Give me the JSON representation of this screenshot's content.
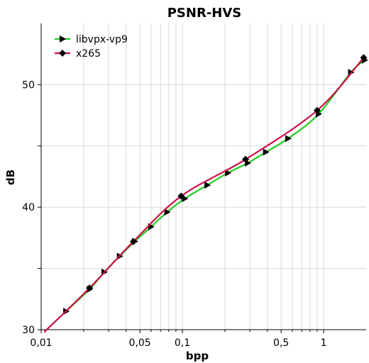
{
  "chart_data": {
    "type": "line",
    "title": "PSNR-HVS",
    "xlabel": "bpp",
    "ylabel": "dB",
    "x_scale": "log",
    "xlim": [
      0.01,
      2.0
    ],
    "ylim": [
      30,
      55
    ],
    "x_ticks": [
      {
        "value": 0.01,
        "label": "0,01"
      },
      {
        "value": 0.05,
        "label": "0,05"
      },
      {
        "value": 0.1,
        "label": "0,1"
      },
      {
        "value": 0.5,
        "label": "0,5"
      },
      {
        "value": 1,
        "label": "1"
      }
    ],
    "x_minor_grid": [
      0.02,
      0.03,
      0.04,
      0.06,
      0.07,
      0.08,
      0.09,
      0.2,
      0.3,
      0.4,
      0.6,
      0.7,
      0.8,
      0.9
    ],
    "y_ticks": [
      {
        "value": 30,
        "label": "30"
      },
      {
        "value": 40,
        "label": "40"
      },
      {
        "value": 50,
        "label": "50"
      }
    ],
    "y_minor_grid": [
      35,
      45
    ],
    "grid": true,
    "legend_position": "top-left",
    "series": [
      {
        "name": "libvpx-vp9",
        "color": "#22cc22",
        "marker": "triangle-right",
        "x": [
          0.015,
          0.022,
          0.028,
          0.036,
          0.046,
          0.06,
          0.078,
          0.104,
          0.15,
          0.21,
          0.29,
          0.39,
          0.56,
          0.92,
          1.56,
          1.95
        ],
        "y": [
          31.5,
          33.3,
          34.7,
          36.0,
          37.2,
          38.4,
          39.6,
          40.7,
          41.8,
          42.8,
          43.6,
          44.5,
          45.6,
          47.6,
          51.0,
          52.0
        ]
      },
      {
        "name": "x265",
        "color": "#cc1144",
        "marker": "diamond",
        "x": [
          0.0105,
          0.022,
          0.045,
          0.098,
          0.28,
          0.9,
          1.92
        ],
        "y": [
          29.8,
          33.4,
          37.2,
          40.9,
          43.9,
          47.9,
          52.2
        ]
      }
    ]
  }
}
